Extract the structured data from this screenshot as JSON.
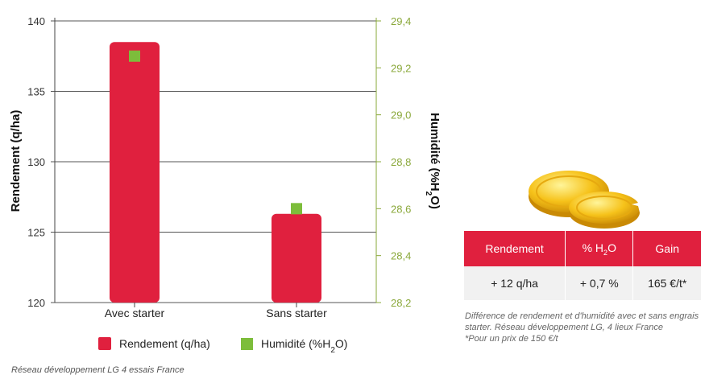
{
  "chart_data": {
    "type": "bar",
    "categories": [
      "Avec starter",
      "Sans starter"
    ],
    "series": [
      {
        "name": "Rendement (q/ha)",
        "axis": "left",
        "values": [
          138.5,
          126.3
        ],
        "color": "#e0203e"
      },
      {
        "name": "Humidité (%H2O)",
        "axis": "right",
        "values": [
          29.25,
          28.6
        ],
        "color": "#7dbd3b"
      }
    ],
    "ylabel": "Rendement (q/ha)",
    "y2label": "Humidité (%H2O)",
    "ylim": [
      120,
      140
    ],
    "y2lim": [
      28.2,
      29.4
    ],
    "yticks": [
      "120",
      "125",
      "130",
      "135",
      "140"
    ],
    "y2ticks": [
      "28,2",
      "28,4",
      "28,6",
      "28,8",
      "29,0",
      "29,2",
      "29,4"
    ],
    "grid": true,
    "legend_placement": "bottom"
  },
  "legend": {
    "rendement": "Rendement (q/ha)",
    "humidite_prefix": "Humidité (%H",
    "humidite_sub": "2",
    "humidite_suffix": "O)"
  },
  "axis": {
    "left_title": "Rendement (q/ha)",
    "right_title_prefix": "Humidité (%H",
    "right_title_sub": "2",
    "right_title_suffix": "O)"
  },
  "source": "Réseau développement LG 4 essais France",
  "table": {
    "headers": {
      "rendement": "Rendement",
      "h2o_prefix": "% H",
      "h2o_sub": "2",
      "h2o_suffix": "O",
      "gain": "Gain"
    },
    "row": {
      "rendement": "+ 12 q/ha",
      "h2o": "+ 0,7 %",
      "gain": "165 €/t*"
    }
  },
  "note": {
    "line1": "Différence de rendement et d'humidité avec et sans engrais starter. Réseau développement LG, 4 lieux France",
    "line2": "*Pour un prix de 150 €/t"
  },
  "colors": {
    "bar": "#e0203e",
    "marker": "#7dbd3b",
    "right_axis": "#8aa83a"
  }
}
